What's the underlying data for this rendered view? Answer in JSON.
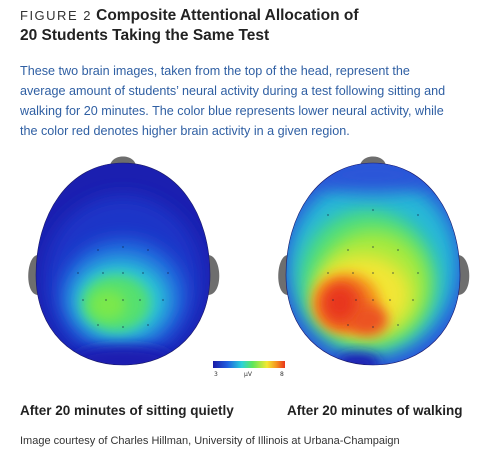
{
  "figure": {
    "label": "FIGURE 2",
    "title_line1": "Composite Attentional Allocation of",
    "title_line2": "20 Students Taking the Same Test"
  },
  "description": {
    "line1": "These two brain images, taken from the top of the head, represent the",
    "line2": "average amount of students’ neural activity during a test following sitting and",
    "line3": "walking for 20 minutes. The color blue represents lower neural activity, while",
    "line4": "the color red denotes higher brain activity in a given region."
  },
  "scale": {
    "min": "3",
    "unit": "µV",
    "max": "8",
    "low_color": "#1a1aa6",
    "high_color": "#e8341c"
  },
  "captions": {
    "left": "After 20 minutes of sitting quietly",
    "right": "After 20 minutes of walking"
  },
  "credit": "Image courtesy of Charles Hillman, University of Illinois at Urbana-Champaign",
  "colors": {
    "description_text": "#2f5fa3",
    "ear_gray": "#6e6e6e"
  },
  "icons": {
    "left_map": "brain-heatmap-icon",
    "right_map": "brain-heatmap-icon"
  }
}
